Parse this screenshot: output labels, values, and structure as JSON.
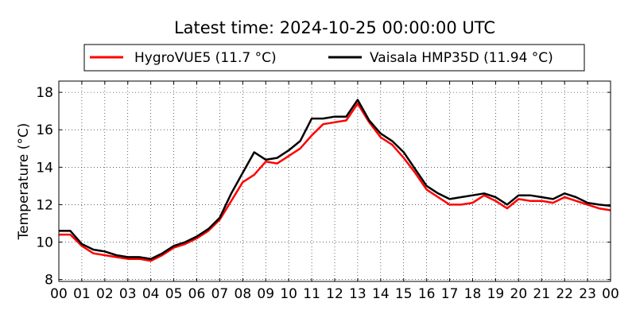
{
  "chart_data": {
    "type": "line",
    "title": "Latest time: 2024-10-25 00:00:00 UTC",
    "ylabel": "Temperature (°C)",
    "xlabel": "",
    "xlim": [
      0,
      24
    ],
    "ylim": [
      7.9,
      18.6
    ],
    "x_ticks": [
      "00",
      "01",
      "02",
      "03",
      "04",
      "05",
      "06",
      "07",
      "08",
      "09",
      "10",
      "11",
      "12",
      "13",
      "14",
      "15",
      "16",
      "17",
      "18",
      "19",
      "20",
      "21",
      "22",
      "23",
      "00"
    ],
    "y_ticks": [
      8,
      10,
      12,
      14,
      16,
      18
    ],
    "grid": true,
    "legend_position": "top",
    "series": [
      {
        "name": "HygroVUE5 (11.7 °C)",
        "color": "#ff0000",
        "x": [
          0,
          0.5,
          1,
          1.5,
          2,
          2.5,
          3,
          3.5,
          4,
          4.5,
          5,
          5.5,
          6,
          6.5,
          7,
          7.5,
          8,
          8.5,
          9,
          9.5,
          10,
          10.5,
          11,
          11.5,
          12,
          12.5,
          13,
          13.5,
          14,
          14.5,
          15,
          15.5,
          16,
          16.5,
          17,
          17.5,
          18,
          18.5,
          19,
          19.5,
          20,
          20.5,
          21,
          21.5,
          22,
          22.5,
          23,
          23.5,
          24
        ],
        "values": [
          10.4,
          10.4,
          9.8,
          9.4,
          9.3,
          9.2,
          9.1,
          9.1,
          9.0,
          9.3,
          9.7,
          9.9,
          10.2,
          10.6,
          11.2,
          12.2,
          13.2,
          13.6,
          14.3,
          14.2,
          14.6,
          15.0,
          15.7,
          16.3,
          16.4,
          16.5,
          17.4,
          16.4,
          15.6,
          15.2,
          14.5,
          13.7,
          12.8,
          12.4,
          12.0,
          12.0,
          12.1,
          12.5,
          12.2,
          11.8,
          12.3,
          12.2,
          12.2,
          12.1,
          12.4,
          12.2,
          12.0,
          11.8,
          11.7
        ]
      },
      {
        "name": "Vaisala HMP35D (11.94 °C)",
        "color": "#000000",
        "x": [
          0,
          0.5,
          1,
          1.5,
          2,
          2.5,
          3,
          3.5,
          4,
          4.5,
          5,
          5.5,
          6,
          6.5,
          7,
          7.5,
          8,
          8.5,
          9,
          9.5,
          10,
          10.5,
          11,
          11.5,
          12,
          12.5,
          13,
          13.5,
          14,
          14.5,
          15,
          15.5,
          16,
          16.5,
          17,
          17.5,
          18,
          18.5,
          19,
          19.5,
          20,
          20.5,
          21,
          21.5,
          22,
          22.5,
          23,
          23.5,
          24
        ],
        "values": [
          10.6,
          10.6,
          9.9,
          9.6,
          9.5,
          9.3,
          9.2,
          9.2,
          9.1,
          9.4,
          9.8,
          10.0,
          10.3,
          10.7,
          11.3,
          12.6,
          13.7,
          14.8,
          14.4,
          14.5,
          14.9,
          15.4,
          16.6,
          16.6,
          16.7,
          16.7,
          17.6,
          16.5,
          15.8,
          15.4,
          14.8,
          13.9,
          13.0,
          12.6,
          12.3,
          12.4,
          12.5,
          12.6,
          12.4,
          12.0,
          12.5,
          12.5,
          12.4,
          12.3,
          12.6,
          12.4,
          12.1,
          12.0,
          11.94
        ]
      }
    ]
  }
}
